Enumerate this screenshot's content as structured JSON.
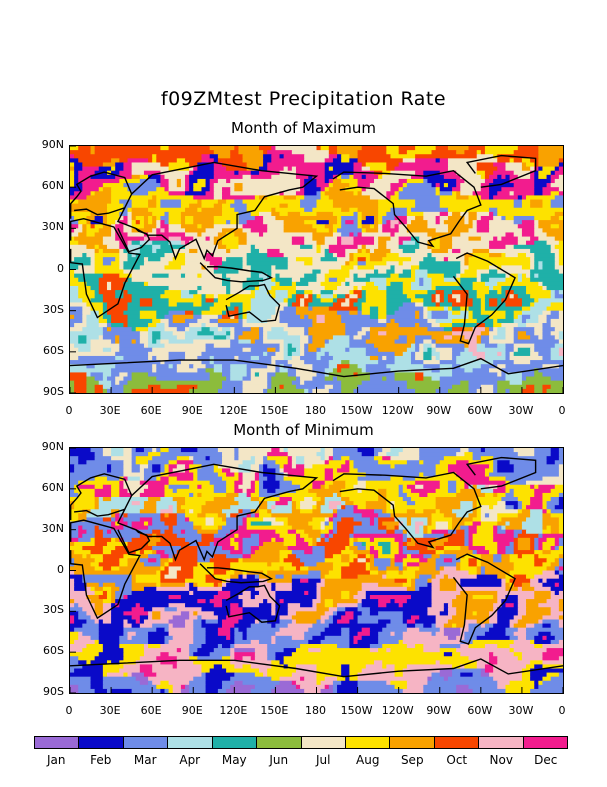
{
  "title": "f09ZMtest Precipitation Rate",
  "panels": [
    {
      "subtitle": "Month of Maximum"
    },
    {
      "subtitle": "Month of Minimum"
    }
  ],
  "lat_labels": [
    "90N",
    "60N",
    "30N",
    "0",
    "30S",
    "60S",
    "90S"
  ],
  "lon_labels": [
    "0",
    "30E",
    "60E",
    "90E",
    "120E",
    "150E",
    "180",
    "150W",
    "120W",
    "90W",
    "60W",
    "30W",
    "0"
  ],
  "legend": {
    "months": [
      "Jan",
      "Feb",
      "Mar",
      "Apr",
      "May",
      "Jun",
      "Jul",
      "Aug",
      "Sep",
      "Oct",
      "Nov",
      "Dec"
    ],
    "colors": [
      "#9a6ad6",
      "#0a0ac8",
      "#6f8ce8",
      "#aee0e6",
      "#1fb0a8",
      "#8cbc3c",
      "#f3e6c6",
      "#fde200",
      "#f9a200",
      "#f84600",
      "#f6b4c4",
      "#f21c8e"
    ]
  }
}
